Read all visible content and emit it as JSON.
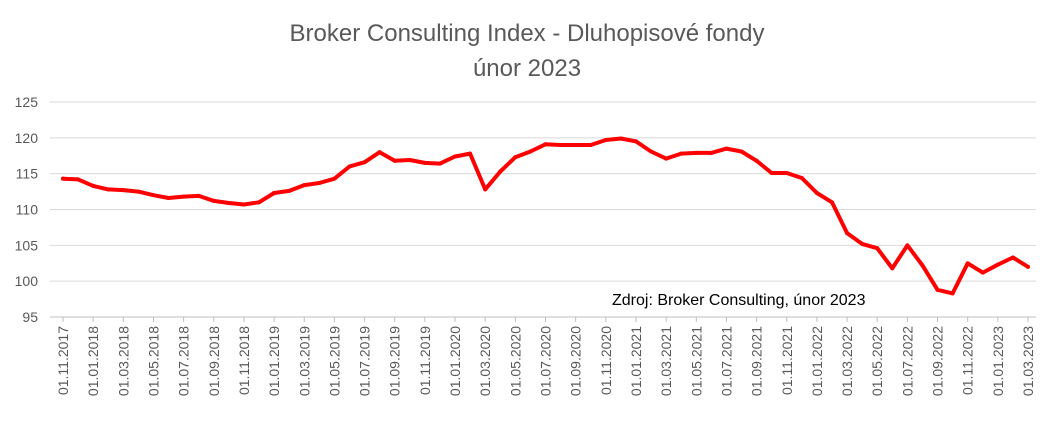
{
  "chart_data": {
    "type": "line",
    "title": "Broker Consulting Index - Dluhopisové fondy",
    "subtitle": "únor 2023",
    "annotation": "Zdroj: Broker Consulting, únor 2023",
    "xlabel": "",
    "ylabel": "",
    "ylim": [
      95,
      125
    ],
    "yticks": [
      95,
      100,
      105,
      110,
      115,
      120,
      125
    ],
    "grid": true,
    "legend": "none",
    "x_tick_labels": [
      "01.11.2017",
      "01.01.2018",
      "01.03.2018",
      "01.05.2018",
      "01.07.2018",
      "01.09.2018",
      "01.11.2018",
      "01.01.2019",
      "01.03.2019",
      "01.05.2019",
      "01.07.2019",
      "01.09.2019",
      "01.11.2019",
      "01.01.2020",
      "01.03.2020",
      "01.05.2020",
      "01.07.2020",
      "01.09.2020",
      "01.11.2020",
      "01.01.2021",
      "01.03.2021",
      "01.05.2021",
      "01.07.2021",
      "01.09.2021",
      "01.11.2021",
      "01.01.2022",
      "01.03.2022",
      "01.05.2022",
      "01.07.2022",
      "01.09.2022",
      "01.11.2022",
      "01.01.2023",
      "01.03.2023"
    ],
    "series": [
      {
        "color": "#ff0000",
        "x": [
          "2017-11",
          "2017-12",
          "2018-01",
          "2018-02",
          "2018-03",
          "2018-04",
          "2018-05",
          "2018-06",
          "2018-07",
          "2018-08",
          "2018-09",
          "2018-10",
          "2018-11",
          "2018-12",
          "2019-01",
          "2019-02",
          "2019-03",
          "2019-04",
          "2019-05",
          "2019-06",
          "2019-07",
          "2019-08",
          "2019-09",
          "2019-10",
          "2019-11",
          "2019-12",
          "2020-01",
          "2020-02",
          "2020-03",
          "2020-04",
          "2020-05",
          "2020-06",
          "2020-07",
          "2020-08",
          "2020-09",
          "2020-10",
          "2020-11",
          "2020-12",
          "2021-01",
          "2021-02",
          "2021-03",
          "2021-04",
          "2021-05",
          "2021-06",
          "2021-07",
          "2021-08",
          "2021-09",
          "2021-10",
          "2021-11",
          "2021-12",
          "2022-01",
          "2022-02",
          "2022-03",
          "2022-04",
          "2022-05",
          "2022-06",
          "2022-07",
          "2022-08",
          "2022-09",
          "2022-10",
          "2022-11",
          "2022-12",
          "2023-01",
          "2023-02",
          "2023-03"
        ],
        "values": [
          114.3,
          114.2,
          113.3,
          112.8,
          112.7,
          112.5,
          112.0,
          111.6,
          111.8,
          111.9,
          111.2,
          110.9,
          110.7,
          111.0,
          112.3,
          112.6,
          113.4,
          113.7,
          114.3,
          116.0,
          116.6,
          118.0,
          116.8,
          116.9,
          116.5,
          116.4,
          117.4,
          117.8,
          112.8,
          115.3,
          117.3,
          118.1,
          119.1,
          119.0,
          119.0,
          119.0,
          119.7,
          119.9,
          119.5,
          118.1,
          117.1,
          117.8,
          117.9,
          117.9,
          118.5,
          118.1,
          116.8,
          115.1,
          115.1,
          114.4,
          112.3,
          111.0,
          106.7,
          105.2,
          104.6,
          101.8,
          105.0,
          102.2,
          98.8,
          98.3,
          102.5,
          101.2,
          102.3,
          103.3,
          102.0
        ]
      }
    ]
  }
}
